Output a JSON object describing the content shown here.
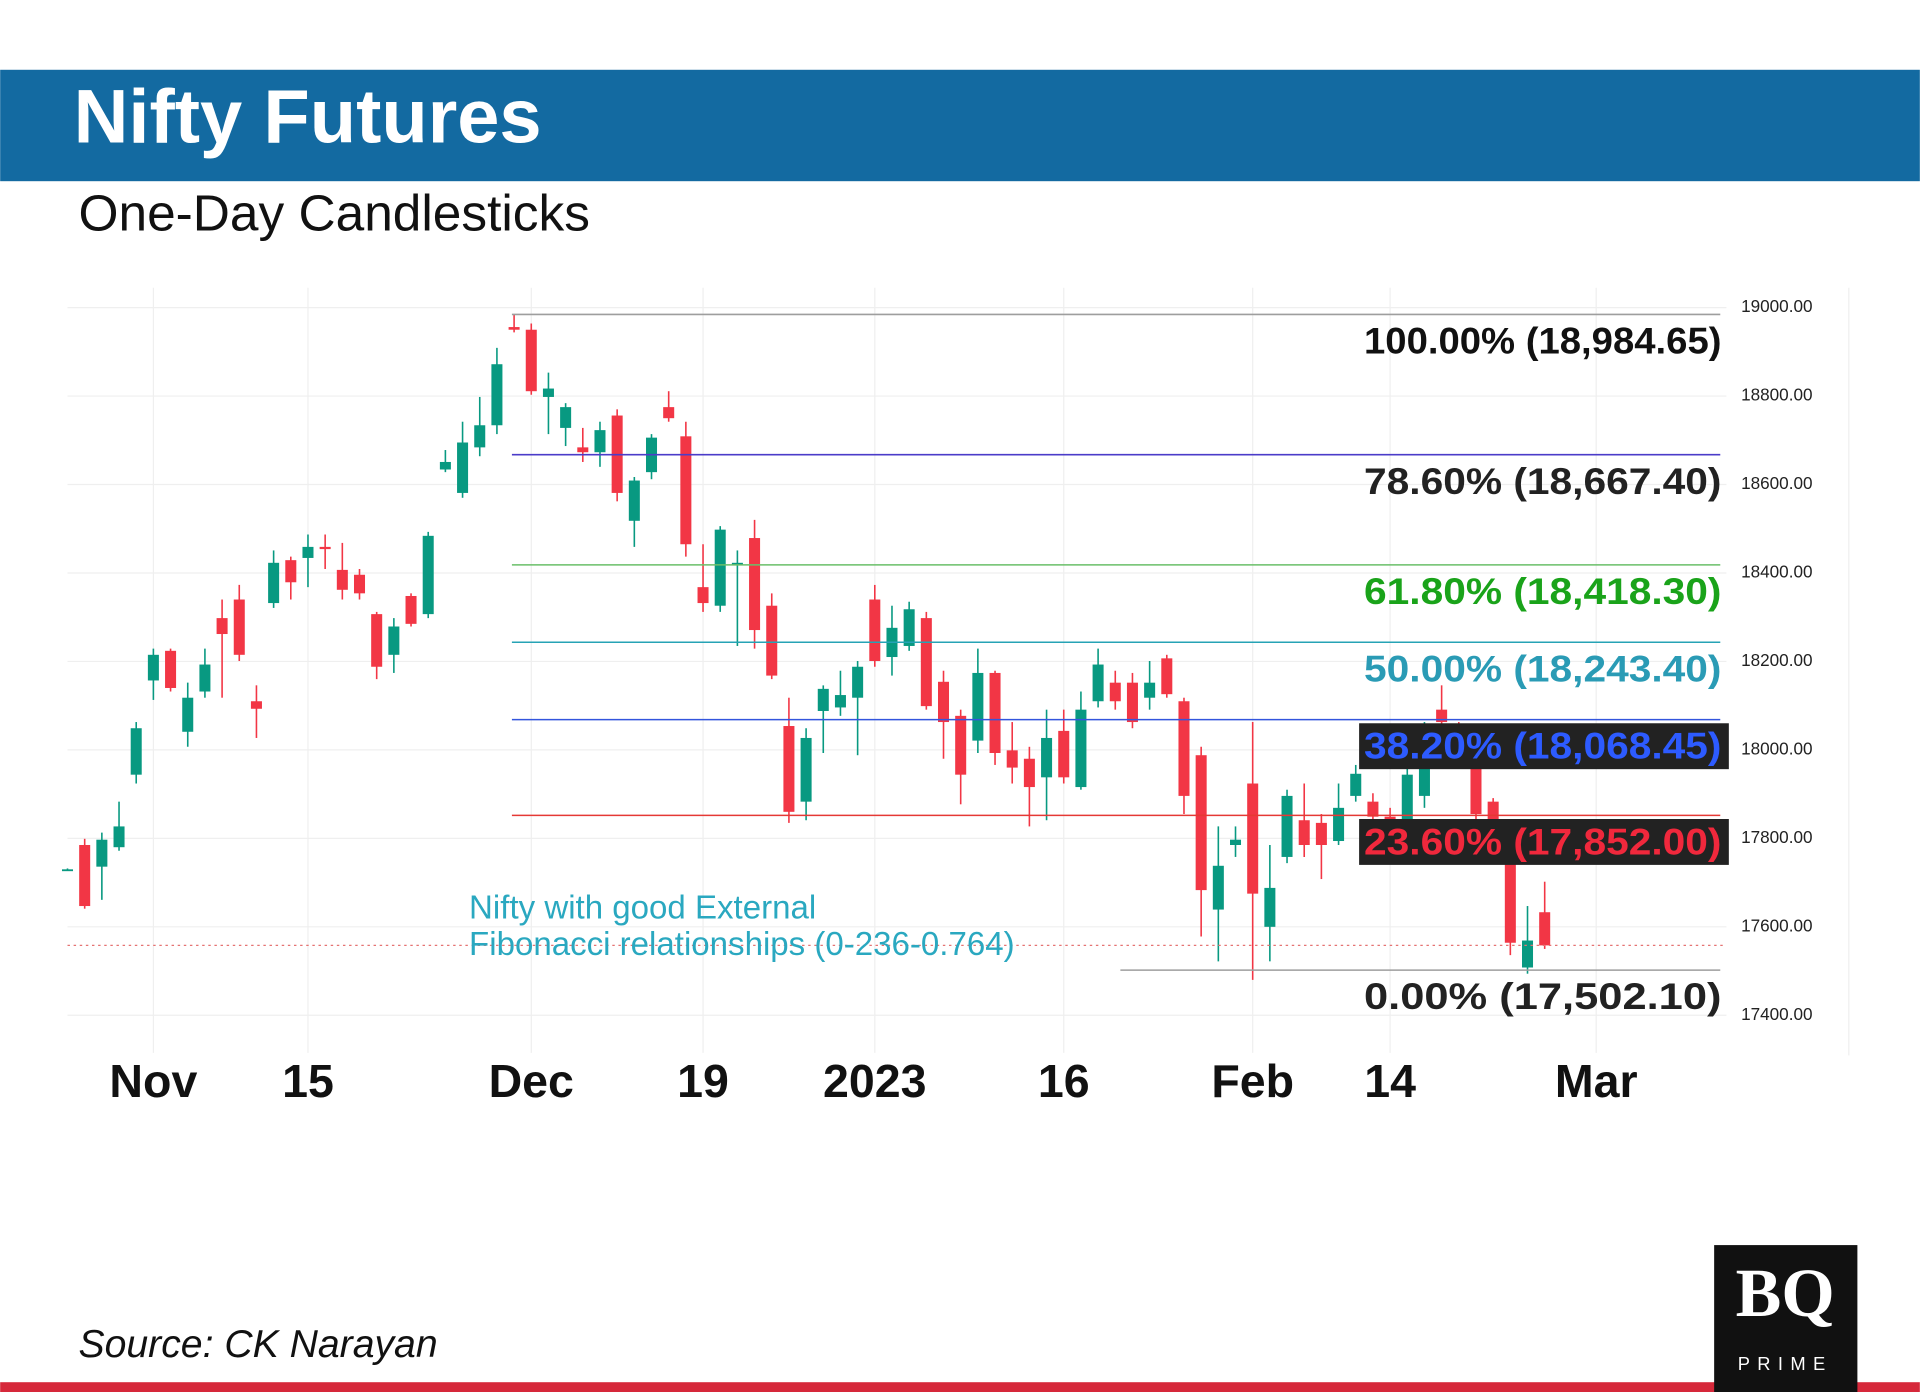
{
  "header": {
    "title": "Nifty Futures",
    "subtitle": "One-Day Candlesticks"
  },
  "chart_data": {
    "type": "candlestick",
    "categories": [
      null,
      null,
      null,
      null,
      null,
      "Nov",
      null,
      null,
      null,
      null,
      null,
      null,
      null,
      null,
      "15",
      null,
      null,
      null,
      null,
      null,
      null,
      null,
      null,
      null,
      null,
      null,
      null,
      "Dec",
      null,
      null,
      null,
      null,
      null,
      null,
      null,
      null,
      null,
      "19",
      null,
      null,
      null,
      null,
      null,
      null,
      null,
      null,
      null,
      "2023",
      null,
      null,
      null,
      null,
      null,
      null,
      null,
      null,
      null,
      null,
      "16",
      null,
      null,
      null,
      null,
      null,
      null,
      null,
      null,
      null,
      null,
      "Feb",
      null,
      null,
      null,
      null,
      null,
      null,
      null,
      "14",
      null,
      null,
      null,
      null,
      null,
      null,
      null,
      null,
      null,
      null,
      null,
      "Mar"
    ],
    "open": [
      17730,
      17785,
      17736,
      17780,
      17944,
      18157,
      18224,
      18041,
      18132,
      18298,
      18340,
      18110,
      18332,
      18429,
      18434,
      18459,
      18407,
      18396,
      18307,
      18215,
      18348,
      18307,
      18634,
      18581,
      18684,
      18734,
      18956,
      18950,
      18798,
      18728,
      18684,
      18673,
      18756,
      18518,
      18628,
      18775,
      18709,
      18368,
      18326,
      18420,
      18479,
      18326,
      18054,
      17883,
      18088,
      18096,
      18118,
      18340,
      18210,
      18235,
      18298,
      18154,
      18077,
      18021,
      18174,
      17999,
      17980,
      17938,
      18043,
      17916,
      18110,
      18152,
      18152,
      18118,
      18207,
      18110,
      17988,
      17639,
      17785,
      17924,
      17600,
      17758,
      17841,
      17835,
      17794,
      17896,
      17883,
      17849,
      17841,
      17896,
      18091,
      18049,
      17993,
      17883,
      17758,
      17508,
      17633,
      null,
      null,
      null
    ],
    "high": [
      17732,
      17799,
      17813,
      17883,
      18063,
      18229,
      18229,
      18152,
      18229,
      18340,
      18373,
      18146,
      18451,
      18437,
      18487,
      18487,
      18468,
      18409,
      18312,
      18298,
      18354,
      18493,
      18678,
      18742,
      18798,
      18909,
      18985,
      18964,
      18853,
      18784,
      18728,
      18742,
      18770,
      18617,
      18714,
      18811,
      18742,
      18465,
      18506,
      18451,
      18520,
      18354,
      18118,
      18049,
      18146,
      18179,
      18201,
      18373,
      18326,
      18335,
      18312,
      18179,
      18091,
      18229,
      18179,
      18063,
      18007,
      18091,
      18091,
      18132,
      18229,
      18179,
      18174,
      18201,
      18215,
      18118,
      18007,
      17827,
      17827,
      18063,
      17785,
      17910,
      17924,
      17855,
      17924,
      17966,
      17902,
      17869,
      17993,
      18063,
      18146,
      18063,
      18021,
      17891,
      17785,
      17647,
      17702,
      null,
      null,
      null
    ],
    "low": [
      17728,
      17641,
      17661,
      17772,
      17924,
      18113,
      18132,
      18007,
      18118,
      18118,
      18201,
      18027,
      18321,
      18340,
      18368,
      18409,
      18340,
      18340,
      18160,
      18174,
      18279,
      18298,
      18628,
      18570,
      18664,
      18714,
      18944,
      18803,
      18714,
      18687,
      18651,
      18640,
      18562,
      18459,
      18612,
      18742,
      18437,
      18312,
      18312,
      18235,
      18229,
      18160,
      17835,
      17841,
      17993,
      18077,
      17988,
      18188,
      18168,
      18224,
      18091,
      17980,
      17877,
      17993,
      17966,
      17924,
      17827,
      17841,
      17924,
      17910,
      18096,
      18091,
      18049,
      18091,
      18118,
      17855,
      17578,
      17522,
      17758,
      17480,
      17522,
      17744,
      17758,
      17708,
      17785,
      17883,
      17841,
      17758,
      17744,
      17869,
      18035,
      17966,
      17841,
      17758,
      17536,
      17494,
      17550,
      null,
      null,
      null
    ],
    "close": [
      17730,
      17647,
      17797,
      17827,
      18049,
      18215,
      18140,
      18118,
      18193,
      18262,
      18215,
      18093,
      18423,
      18379,
      18459,
      18454,
      18362,
      18354,
      18188,
      18279,
      18285,
      18484,
      18651,
      18695,
      18734,
      18872,
      18950,
      18811,
      18817,
      18775,
      18673,
      18723,
      18581,
      18609,
      18706,
      18750,
      18465,
      18332,
      18498,
      18423,
      18271,
      18168,
      17860,
      18027,
      18138,
      18124,
      18188,
      18201,
      18276,
      18318,
      18099,
      18063,
      17944,
      18174,
      17993,
      17960,
      17916,
      18027,
      17938,
      18091,
      18193,
      18110,
      18063,
      18152,
      18126,
      17896,
      17683,
      17738,
      17797,
      17675,
      17688,
      17896,
      17785,
      17785,
      17869,
      17946,
      17849,
      17799,
      17944,
      18049,
      18063,
      17980,
      17855,
      17841,
      17564,
      17569,
      17558,
      null,
      null,
      null
    ],
    "up_color": "#089981",
    "down_color": "#f23645",
    "ylim": [
      17315,
      19045
    ],
    "yticks": [
      {
        "value": 17400,
        "label": "17400.00"
      },
      {
        "value": 17600,
        "label": "17600.00"
      },
      {
        "value": 17800,
        "label": "17800.00"
      },
      {
        "value": 18000,
        "label": "18000.00"
      },
      {
        "value": 18200,
        "label": "18200.00"
      },
      {
        "value": 18400,
        "label": "18400.00"
      },
      {
        "value": 18600,
        "label": "18600.00"
      },
      {
        "value": 18800,
        "label": "18800.00"
      },
      {
        "value": 19000,
        "label": "19000.00"
      }
    ],
    "grid": true,
    "fib_levels": [
      {
        "value": 18984.65,
        "label": "100.00% (18,984.65)",
        "color": "#9e9e9e",
        "text_color": "#111111"
      },
      {
        "value": 18667.4,
        "label": "78.60% (18,667.40)",
        "color": "#4b3cc9",
        "text_color": "#222222"
      },
      {
        "value": 18418.3,
        "label": "61.80% (18,418.30)",
        "color": "#6abf69",
        "text_color": "#1aa31a"
      },
      {
        "value": 18243.4,
        "label": "50.00% (18,243.40)",
        "color": "#26a3b5",
        "text_color": "#2a9bb5"
      },
      {
        "value": 18068.45,
        "label": "38.20% (18,068.45)",
        "color": "#3355dd",
        "text_color": "#2d5bff",
        "background": "#222222"
      },
      {
        "value": 17852,
        "label": "23.60% (17,852.00)",
        "color": "#e53935",
        "text_color": "#f0283c",
        "background": "#222222"
      },
      {
        "value": 17502.1,
        "label": "0.00% (17,502.10)",
        "color": "#9e9e9e",
        "text_color": "#222222"
      }
    ],
    "annotation": [
      "Nifty with good External",
      "Fibonacci relationships (0-236-0.764)"
    ]
  },
  "footer": {
    "source": "Source: CK Narayan",
    "logo": "BQ",
    "logo_sub": "PRIME"
  }
}
